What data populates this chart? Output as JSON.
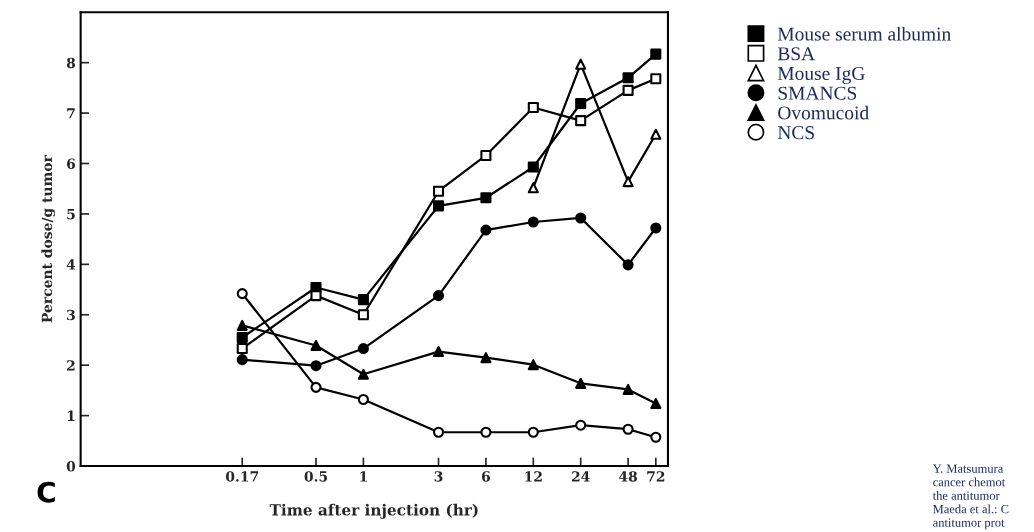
{
  "chart_data": {
    "type": "line",
    "xlabel": "Time after injection (hr)",
    "ylabel": "Percent dose/g tumor",
    "x": [
      0.17,
      0.5,
      1,
      3,
      6,
      12,
      24,
      48,
      72
    ],
    "series": [
      {
        "name": "Mouse serum albumin",
        "color": "#000000",
        "marker": "square",
        "values": [
          2.55,
          3.54,
          3.3,
          5.16,
          5.32,
          5.93,
          7.19,
          7.7,
          8.17
        ]
      },
      {
        "name": "BSA",
        "color": "#000000",
        "marker": "square",
        "colors": [
          "#ffffff",
          "#ffffff",
          "#ffffff",
          "#ffffff",
          "#ffffff",
          "#ffffff",
          "#ffffff",
          "#ffffff",
          "#ffffff"
        ],
        "values": [
          2.33,
          3.38,
          3.0,
          5.45,
          6.16,
          7.11,
          6.85,
          7.45,
          7.68
        ]
      },
      {
        "name": "Mouse IgG",
        "color": "#000000",
        "marker": "triangle",
        "colors": [
          "#ffffff",
          "#ffffff",
          "#ffffff",
          "#ffffff",
          "#ffffff",
          "#ffffff",
          "#ffffff",
          "#ffffff",
          "#ffffff"
        ],
        "values": [
          null,
          null,
          null,
          null,
          null,
          5.52,
          7.97,
          5.64,
          6.58
        ]
      },
      {
        "name": "SMANCS",
        "color": "#000000",
        "marker": "circle",
        "values": [
          2.11,
          1.99,
          2.33,
          3.38,
          4.68,
          4.84,
          4.92,
          3.99,
          4.72
        ]
      },
      {
        "name": "Ovomucoid",
        "color": "#000000",
        "marker": "triangle",
        "values": [
          2.79,
          2.39,
          1.82,
          2.27,
          2.15,
          2.01,
          1.64,
          1.52,
          1.24
        ]
      },
      {
        "name": "NCS",
        "color": "#000000",
        "marker": "circle",
        "colors": [
          "#ffffff",
          "#ffffff",
          "#ffffff",
          "#ffffff",
          "#ffffff",
          "#ffffff",
          "#ffffff",
          "#ffffff",
          "#ffffff"
        ],
        "values": [
          3.42,
          1.56,
          1.32,
          0.67,
          0.67,
          0.67,
          0.81,
          0.73,
          0.57
        ]
      }
    ],
    "log": "x",
    "xlim": [
      0.016,
      86
    ],
    "xticks": [
      0.17,
      0.5,
      1,
      3,
      6,
      12,
      24,
      48,
      72
    ],
    "ylim": [
      0,
      9
    ],
    "yticks": [
      0,
      1,
      2,
      3,
      4,
      5,
      6,
      7,
      8
    ],
    "grid": false,
    "legend": "top right",
    "line_style": "solid",
    "annotations": [
      "C",
      "Y. Matsumura\ncancer chemot\nthe antitumor\nMaeda et al.: C\nantitumor prot"
    ]
  }
}
